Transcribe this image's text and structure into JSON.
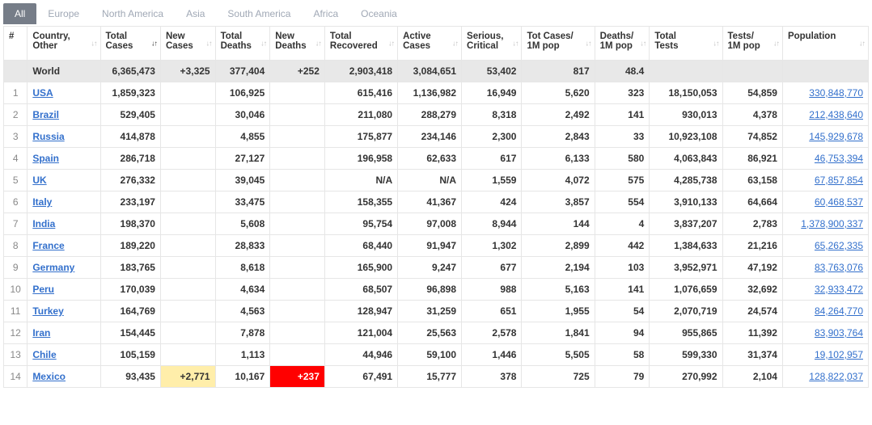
{
  "tabs": [
    {
      "label": "All",
      "active": true
    },
    {
      "label": "Europe",
      "active": false
    },
    {
      "label": "North America",
      "active": false
    },
    {
      "label": "Asia",
      "active": false
    },
    {
      "label": "South America",
      "active": false
    },
    {
      "label": "Africa",
      "active": false
    },
    {
      "label": "Oceania",
      "active": false
    }
  ],
  "columns": [
    {
      "label": "#"
    },
    {
      "label": "Country,\nOther"
    },
    {
      "label": "Total\nCases",
      "sorted": true
    },
    {
      "label": "New\nCases"
    },
    {
      "label": "Total\nDeaths"
    },
    {
      "label": "New\nDeaths"
    },
    {
      "label": "Total\nRecovered"
    },
    {
      "label": "Active\nCases"
    },
    {
      "label": "Serious,\nCritical"
    },
    {
      "label": "Tot Cases/\n1M pop"
    },
    {
      "label": "Deaths/\n1M pop"
    },
    {
      "label": "Total\nTests"
    },
    {
      "label": "Tests/\n1M pop"
    },
    {
      "label": "Population"
    }
  ],
  "world": {
    "country": "World",
    "total_cases": "6,365,473",
    "new_cases": "+3,325",
    "total_deaths": "377,404",
    "new_deaths": "+252",
    "total_recovered": "2,903,418",
    "active_cases": "3,084,651",
    "serious": "53,402",
    "cases_per_m": "817",
    "deaths_per_m": "48.4",
    "total_tests": "",
    "tests_per_m": "",
    "population": ""
  },
  "rows": [
    {
      "idx": "1",
      "country": "USA",
      "total_cases": "1,859,323",
      "new_cases": "",
      "total_deaths": "106,925",
      "new_deaths": "",
      "total_recovered": "615,416",
      "active_cases": "1,136,982",
      "serious": "16,949",
      "cases_per_m": "5,620",
      "deaths_per_m": "323",
      "total_tests": "18,150,053",
      "tests_per_m": "54,859",
      "population": "330,848,770"
    },
    {
      "idx": "2",
      "country": "Brazil",
      "total_cases": "529,405",
      "new_cases": "",
      "total_deaths": "30,046",
      "new_deaths": "",
      "total_recovered": "211,080",
      "active_cases": "288,279",
      "serious": "8,318",
      "cases_per_m": "2,492",
      "deaths_per_m": "141",
      "total_tests": "930,013",
      "tests_per_m": "4,378",
      "population": "212,438,640"
    },
    {
      "idx": "3",
      "country": "Russia",
      "total_cases": "414,878",
      "new_cases": "",
      "total_deaths": "4,855",
      "new_deaths": "",
      "total_recovered": "175,877",
      "active_cases": "234,146",
      "serious": "2,300",
      "cases_per_m": "2,843",
      "deaths_per_m": "33",
      "total_tests": "10,923,108",
      "tests_per_m": "74,852",
      "population": "145,929,678"
    },
    {
      "idx": "4",
      "country": "Spain",
      "total_cases": "286,718",
      "new_cases": "",
      "total_deaths": "27,127",
      "new_deaths": "",
      "total_recovered": "196,958",
      "active_cases": "62,633",
      "serious": "617",
      "cases_per_m": "6,133",
      "deaths_per_m": "580",
      "total_tests": "4,063,843",
      "tests_per_m": "86,921",
      "population": "46,753,394"
    },
    {
      "idx": "5",
      "country": "UK",
      "total_cases": "276,332",
      "new_cases": "",
      "total_deaths": "39,045",
      "new_deaths": "",
      "total_recovered": "N/A",
      "active_cases": "N/A",
      "serious": "1,559",
      "cases_per_m": "4,072",
      "deaths_per_m": "575",
      "total_tests": "4,285,738",
      "tests_per_m": "63,158",
      "population": "67,857,854"
    },
    {
      "idx": "6",
      "country": "Italy",
      "total_cases": "233,197",
      "new_cases": "",
      "total_deaths": "33,475",
      "new_deaths": "",
      "total_recovered": "158,355",
      "active_cases": "41,367",
      "serious": "424",
      "cases_per_m": "3,857",
      "deaths_per_m": "554",
      "total_tests": "3,910,133",
      "tests_per_m": "64,664",
      "population": "60,468,537"
    },
    {
      "idx": "7",
      "country": "India",
      "total_cases": "198,370",
      "new_cases": "",
      "total_deaths": "5,608",
      "new_deaths": "",
      "total_recovered": "95,754",
      "active_cases": "97,008",
      "serious": "8,944",
      "cases_per_m": "144",
      "deaths_per_m": "4",
      "total_tests": "3,837,207",
      "tests_per_m": "2,783",
      "population": "1,378,900,337"
    },
    {
      "idx": "8",
      "country": "France",
      "total_cases": "189,220",
      "new_cases": "",
      "total_deaths": "28,833",
      "new_deaths": "",
      "total_recovered": "68,440",
      "active_cases": "91,947",
      "serious": "1,302",
      "cases_per_m": "2,899",
      "deaths_per_m": "442",
      "total_tests": "1,384,633",
      "tests_per_m": "21,216",
      "population": "65,262,335"
    },
    {
      "idx": "9",
      "country": "Germany",
      "total_cases": "183,765",
      "new_cases": "",
      "total_deaths": "8,618",
      "new_deaths": "",
      "total_recovered": "165,900",
      "active_cases": "9,247",
      "serious": "677",
      "cases_per_m": "2,194",
      "deaths_per_m": "103",
      "total_tests": "3,952,971",
      "tests_per_m": "47,192",
      "population": "83,763,076"
    },
    {
      "idx": "10",
      "country": "Peru",
      "total_cases": "170,039",
      "new_cases": "",
      "total_deaths": "4,634",
      "new_deaths": "",
      "total_recovered": "68,507",
      "active_cases": "96,898",
      "serious": "988",
      "cases_per_m": "5,163",
      "deaths_per_m": "141",
      "total_tests": "1,076,659",
      "tests_per_m": "32,692",
      "population": "32,933,472"
    },
    {
      "idx": "11",
      "country": "Turkey",
      "total_cases": "164,769",
      "new_cases": "",
      "total_deaths": "4,563",
      "new_deaths": "",
      "total_recovered": "128,947",
      "active_cases": "31,259",
      "serious": "651",
      "cases_per_m": "1,955",
      "deaths_per_m": "54",
      "total_tests": "2,070,719",
      "tests_per_m": "24,574",
      "population": "84,264,770"
    },
    {
      "idx": "12",
      "country": "Iran",
      "total_cases": "154,445",
      "new_cases": "",
      "total_deaths": "7,878",
      "new_deaths": "",
      "total_recovered": "121,004",
      "active_cases": "25,563",
      "serious": "2,578",
      "cases_per_m": "1,841",
      "deaths_per_m": "94",
      "total_tests": "955,865",
      "tests_per_m": "11,392",
      "population": "83,903,764"
    },
    {
      "idx": "13",
      "country": "Chile",
      "total_cases": "105,159",
      "new_cases": "",
      "total_deaths": "1,113",
      "new_deaths": "",
      "total_recovered": "44,946",
      "active_cases": "59,100",
      "serious": "1,446",
      "cases_per_m": "5,505",
      "deaths_per_m": "58",
      "total_tests": "599,330",
      "tests_per_m": "31,374",
      "population": "19,102,957"
    },
    {
      "idx": "14",
      "country": "Mexico",
      "total_cases": "93,435",
      "new_cases": "+2,771",
      "new_cases_hl": "yellow",
      "total_deaths": "10,167",
      "new_deaths": "+237",
      "new_deaths_hl": "red",
      "total_recovered": "67,491",
      "active_cases": "15,777",
      "serious": "378",
      "cases_per_m": "725",
      "deaths_per_m": "79",
      "total_tests": "270,992",
      "tests_per_m": "2,104",
      "population": "128,822,037"
    }
  ]
}
